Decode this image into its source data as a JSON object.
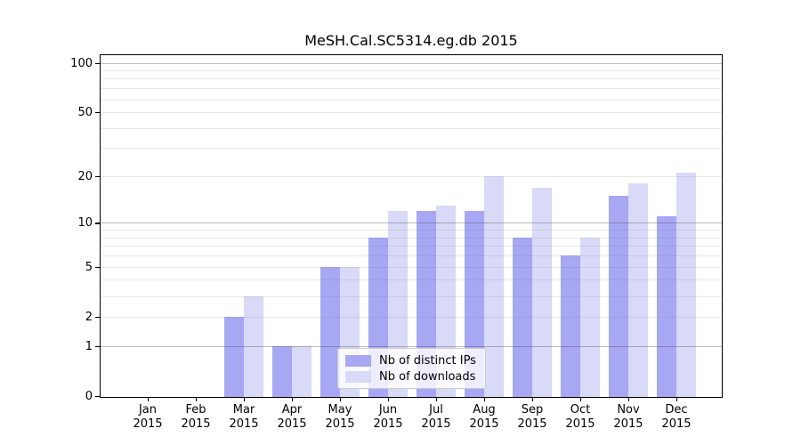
{
  "chart_data": {
    "type": "bar",
    "title": "MeSH.Cal.SC5314.eg.db 2015",
    "year_label": "2015",
    "months": [
      "Jan",
      "Feb",
      "Mar",
      "Apr",
      "May",
      "Jun",
      "Jul",
      "Aug",
      "Sep",
      "Oct",
      "Nov",
      "Dec"
    ],
    "categories": [
      "Jan 2015",
      "Feb 2015",
      "Mar 2015",
      "Apr 2015",
      "May 2015",
      "Jun 2015",
      "Jul 2015",
      "Aug 2015",
      "Sep 2015",
      "Oct 2015",
      "Nov 2015",
      "Dec 2015"
    ],
    "series": [
      {
        "name": "Nb of distinct IPs",
        "color": "#a7a7f4",
        "values": [
          0,
          0,
          2,
          1,
          5,
          8,
          12,
          12,
          8,
          6,
          15,
          11
        ]
      },
      {
        "name": "Nb of downloads",
        "color": "#d9d9f8",
        "values": [
          0,
          0,
          3,
          1,
          5,
          12,
          13,
          20,
          17,
          8,
          18,
          21
        ]
      }
    ],
    "yscale": "log1p",
    "ylim": [
      0,
      118
    ],
    "yticks": [
      0,
      1,
      2,
      5,
      10,
      20,
      50,
      100
    ],
    "grid_power_lines": [
      1,
      10,
      100
    ],
    "grid_minor_lines": [
      2,
      3,
      4,
      5,
      6,
      7,
      8,
      9,
      20,
      30,
      40,
      50,
      60,
      70,
      80,
      90
    ],
    "legend_position": "lower center",
    "xlabel": "",
    "ylabel": "",
    "background_color": "#ffffff",
    "spine_color": "#000000"
  }
}
